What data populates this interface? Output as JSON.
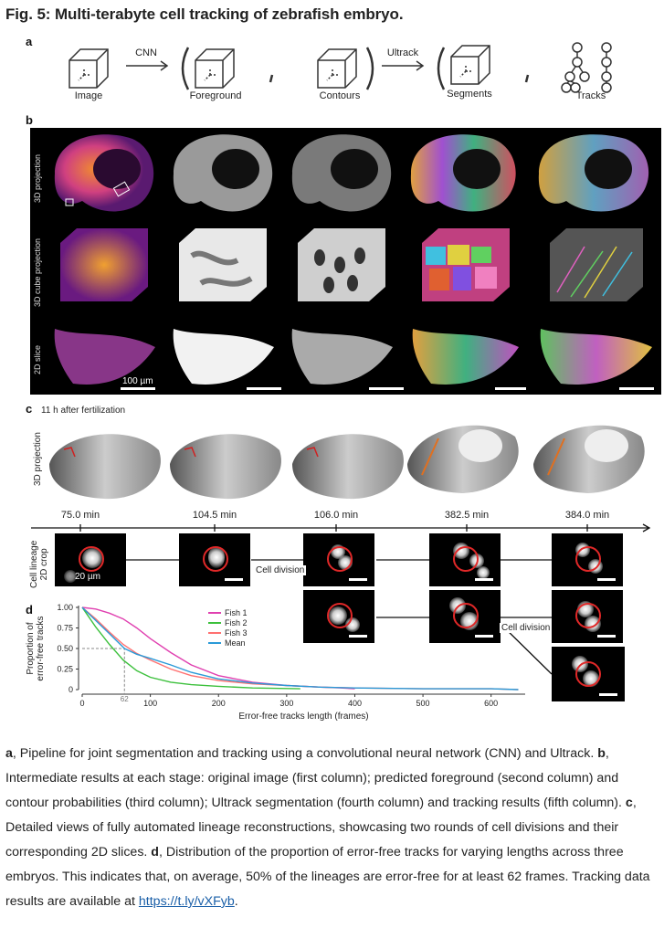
{
  "figure": {
    "title": "Fig. 5: Multi-terabyte cell tracking of zebrafish embryo."
  },
  "panel_a": {
    "letter": "a",
    "labels": [
      "Image",
      "Foreground",
      "Contours",
      "Segments",
      "Tracks"
    ],
    "arrow1": "CNN",
    "arrow2": "Ultrack"
  },
  "panel_b": {
    "letter": "b",
    "row_labels": [
      "3D projection",
      "3D cube projection",
      "2D slice"
    ],
    "scale_label": "100 µm"
  },
  "panel_c": {
    "letter": "c",
    "subtitle": "11 h after fertilization",
    "row_label": "3D projection",
    "times": [
      "75.0 min",
      "104.5 min",
      "106.0 min",
      "382.5 min",
      "384.0 min"
    ],
    "crop_label": "Cell lineage\n2D crop",
    "scale_label": "20 µm",
    "division_1": "Cell division",
    "division_2": "Cell division"
  },
  "panel_d": {
    "letter": "d"
  },
  "chart_data": {
    "type": "line",
    "title": "",
    "xlabel": "Error-free tracks length (frames)",
    "ylabel": "Proportion of\nerror-free tracks",
    "xlim": [
      0,
      650
    ],
    "ylim": [
      0,
      1.0
    ],
    "xticks": [
      0,
      100,
      200,
      300,
      400,
      500,
      600
    ],
    "yticks": [
      0,
      0.25,
      0.5,
      0.75,
      1.0
    ],
    "ytick_labels": [
      "0",
      "0.25",
      "0.50",
      "0.75",
      "1.00"
    ],
    "annotation": {
      "x": 62,
      "y": 0.5,
      "label": "62"
    },
    "legend_position": "top-right",
    "series": [
      {
        "name": "Fish 1",
        "color": "#e040b0",
        "x": [
          0,
          20,
          40,
          60,
          80,
          100,
          130,
          160,
          200,
          250,
          300,
          350,
          380,
          400
        ],
        "y": [
          1.0,
          0.98,
          0.93,
          0.86,
          0.75,
          0.62,
          0.45,
          0.3,
          0.17,
          0.09,
          0.05,
          0.03,
          0.02,
          0.01
        ]
      },
      {
        "name": "Fish 2",
        "color": "#3cc03c",
        "x": [
          0,
          10,
          20,
          40,
          60,
          80,
          100,
          130,
          160,
          200,
          250,
          320
        ],
        "y": [
          1.0,
          0.88,
          0.76,
          0.55,
          0.36,
          0.23,
          0.15,
          0.09,
          0.06,
          0.04,
          0.02,
          0.01
        ]
      },
      {
        "name": "Fish 3",
        "color": "#ff7070",
        "x": [
          0,
          20,
          40,
          60,
          80,
          100,
          130,
          160,
          200,
          250,
          300,
          350,
          400,
          500,
          600,
          640
        ],
        "y": [
          1.0,
          0.86,
          0.7,
          0.55,
          0.44,
          0.36,
          0.25,
          0.17,
          0.11,
          0.07,
          0.05,
          0.03,
          0.02,
          0.01,
          0.01,
          0.0
        ]
      },
      {
        "name": "Mean",
        "color": "#2a9ad8",
        "x": [
          0,
          20,
          40,
          62,
          80,
          100,
          130,
          160,
          200,
          250,
          300,
          350,
          400,
          500,
          600,
          640
        ],
        "y": [
          1.0,
          0.84,
          0.68,
          0.5,
          0.43,
          0.38,
          0.3,
          0.21,
          0.13,
          0.08,
          0.05,
          0.03,
          0.02,
          0.01,
          0.01,
          0.0
        ]
      }
    ]
  },
  "caption": {
    "a_letter": "a",
    "a_text": ", Pipeline for joint segmentation and tracking using a convolutional neural network (CNN) and Ultrack. ",
    "b_letter": "b",
    "b_text": ", Intermediate results at each stage: original image (first column); predicted foreground (second column) and contour probabilities (third column); Ultrack segmentation (fourth column) and tracking results (fifth column). ",
    "c_letter": "c",
    "c_text": ", Detailed views of fully automated lineage reconstructions, showcasing two rounds of cell divisions and their corresponding 2D slices. ",
    "d_letter": "d",
    "d_text": ", Distribution of the proportion of error-free tracks for varying lengths across three embryos. This indicates that, on average, 50% of the lineages are error-free for at least 62 frames. Tracking data results are available at ",
    "link": "https://t.ly/vXFyb",
    "end": "."
  }
}
